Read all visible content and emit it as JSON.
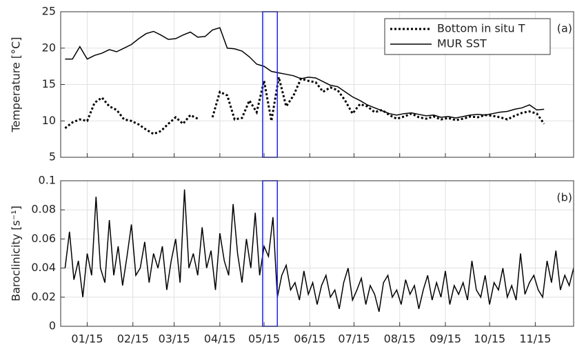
{
  "chart_data": [
    {
      "type": "line",
      "y_label": "Temperature [°C]",
      "panel_label": "(a)",
      "legend": "upper right",
      "xlim": [
        -3,
        345
      ],
      "ylim": [
        5,
        25
      ],
      "yticks": [
        5,
        10,
        15,
        20,
        25
      ],
      "grid": true,
      "highlight": [
        134,
        144
      ],
      "highlight_color": "#1f1fff",
      "x": [
        0,
        5,
        10,
        15,
        20,
        25,
        30,
        35,
        40,
        45,
        50,
        55,
        60,
        65,
        70,
        75,
        80,
        85,
        90,
        95,
        100,
        105,
        110,
        115,
        120,
        125,
        130,
        135,
        140,
        145,
        150,
        155,
        160,
        165,
        170,
        175,
        180,
        185,
        190,
        195,
        200,
        205,
        210,
        215,
        220,
        225,
        230,
        235,
        240,
        245,
        250,
        255,
        260,
        265,
        270,
        275,
        280,
        285,
        290,
        295,
        300,
        305,
        310,
        315,
        320,
        325
      ],
      "series": [
        {
          "name": "Bottom in situ T",
          "color": "#000000",
          "style": "dotted",
          "values": [
            9.0,
            9.8,
            10.2,
            10.0,
            12.5,
            13.2,
            12.0,
            11.5,
            10.2,
            10.0,
            9.5,
            8.8,
            8.2,
            8.6,
            9.6,
            10.5,
            9.6,
            10.8,
            10.3,
            null,
            10.5,
            14.0,
            13.5,
            10.2,
            10.4,
            12.8,
            11.2,
            15.5,
            10.0,
            16.0,
            12.0,
            13.5,
            15.8,
            15.5,
            15.3,
            14.0,
            14.6,
            14.2,
            12.8,
            11.0,
            12.3,
            12.0,
            11.2,
            11.5,
            10.8,
            10.3,
            10.6,
            11.0,
            10.5,
            10.3,
            10.6,
            10.2,
            10.4,
            10.1,
            10.3,
            10.6,
            10.5,
            10.8,
            10.7,
            10.5,
            10.2,
            10.7,
            11.1,
            11.3,
            11.0,
            9.6
          ]
        },
        {
          "name": "MUR SST",
          "color": "#000000",
          "style": "solid",
          "values": [
            18.5,
            18.5,
            20.2,
            18.5,
            19.0,
            19.3,
            19.8,
            19.5,
            20.0,
            20.5,
            21.3,
            22.0,
            22.3,
            21.8,
            21.2,
            21.3,
            21.8,
            22.2,
            21.5,
            21.6,
            22.5,
            22.8,
            20.0,
            19.9,
            19.6,
            18.8,
            17.8,
            17.5,
            16.8,
            16.6,
            16.4,
            16.2,
            15.8,
            16.0,
            15.9,
            15.4,
            14.9,
            14.7,
            14.0,
            13.3,
            12.8,
            12.2,
            11.8,
            11.4,
            11.0,
            10.8,
            11.0,
            11.1,
            10.9,
            10.7,
            10.8,
            10.5,
            10.6,
            10.4,
            10.6,
            10.8,
            10.9,
            10.8,
            11.0,
            11.2,
            11.3,
            11.6,
            11.8,
            12.2,
            11.5,
            11.6
          ]
        }
      ]
    },
    {
      "type": "line",
      "y_label": "Baroclinicity [s⁻¹]",
      "panel_label": "(b)",
      "xlim": [
        -3,
        345
      ],
      "ylim": [
        0,
        0.1
      ],
      "yticks": [
        0,
        0.02,
        0.04,
        0.06,
        0.08,
        0.1
      ],
      "grid": true,
      "highlight": [
        134,
        144
      ],
      "highlight_color": "#1f1fff",
      "xticks": [
        {
          "value": 15,
          "label": "01/15"
        },
        {
          "value": 46,
          "label": "02/15"
        },
        {
          "value": 74,
          "label": "03/15"
        },
        {
          "value": 105,
          "label": "04/15"
        },
        {
          "value": 135,
          "label": "05/15"
        },
        {
          "value": 166,
          "label": "06/15"
        },
        {
          "value": 196,
          "label": "07/15"
        },
        {
          "value": 227,
          "label": "08/15"
        },
        {
          "value": 258,
          "label": "09/15"
        },
        {
          "value": 288,
          "label": "10/15"
        },
        {
          "value": 319,
          "label": "11/15"
        }
      ],
      "x": [
        0,
        3,
        6,
        9,
        12,
        15,
        18,
        21,
        24,
        27,
        30,
        33,
        36,
        39,
        42,
        45,
        48,
        51,
        54,
        57,
        60,
        63,
        66,
        69,
        72,
        75,
        78,
        81,
        84,
        87,
        90,
        93,
        96,
        99,
        102,
        105,
        108,
        111,
        114,
        117,
        120,
        123,
        126,
        129,
        132,
        135,
        138,
        141,
        144,
        147,
        150,
        153,
        156,
        159,
        162,
        165,
        168,
        171,
        174,
        177,
        180,
        183,
        186,
        189,
        192,
        195,
        198,
        201,
        204,
        207,
        210,
        213,
        216,
        219,
        222,
        225,
        228,
        231,
        234,
        237,
        240,
        243,
        246,
        249,
        252,
        255,
        258,
        261,
        264,
        267,
        270,
        273,
        276,
        279,
        282,
        285,
        288,
        291,
        294,
        297,
        300,
        303,
        306,
        309,
        312,
        315,
        318,
        321,
        324,
        327,
        330,
        333,
        336,
        339,
        342,
        345
      ],
      "series": [
        {
          "name": "Baroclinicity",
          "color": "#000000",
          "style": "solid",
          "values": [
            0.04,
            0.065,
            0.032,
            0.045,
            0.02,
            0.05,
            0.035,
            0.089,
            0.04,
            0.03,
            0.073,
            0.035,
            0.055,
            0.028,
            0.048,
            0.07,
            0.035,
            0.04,
            0.058,
            0.03,
            0.05,
            0.04,
            0.055,
            0.025,
            0.045,
            0.06,
            0.03,
            0.094,
            0.04,
            0.05,
            0.035,
            0.068,
            0.04,
            0.052,
            0.025,
            0.064,
            0.045,
            0.035,
            0.084,
            0.05,
            0.03,
            0.06,
            0.04,
            0.078,
            0.035,
            0.055,
            0.048,
            0.075,
            0.02,
            0.035,
            0.042,
            0.025,
            0.03,
            0.018,
            0.038,
            0.022,
            0.03,
            0.015,
            0.028,
            0.035,
            0.02,
            0.025,
            0.012,
            0.03,
            0.04,
            0.018,
            0.025,
            0.033,
            0.015,
            0.028,
            0.022,
            0.01,
            0.03,
            0.035,
            0.02,
            0.025,
            0.015,
            0.032,
            0.022,
            0.028,
            0.012,
            0.025,
            0.035,
            0.018,
            0.03,
            0.02,
            0.038,
            0.015,
            0.028,
            0.022,
            0.03,
            0.018,
            0.045,
            0.025,
            0.02,
            0.035,
            0.015,
            0.03,
            0.025,
            0.04,
            0.02,
            0.028,
            0.018,
            0.05,
            0.022,
            0.03,
            0.035,
            0.025,
            0.02,
            0.045,
            0.03,
            0.052,
            0.025,
            0.035,
            0.028,
            0.04
          ]
        }
      ]
    }
  ]
}
